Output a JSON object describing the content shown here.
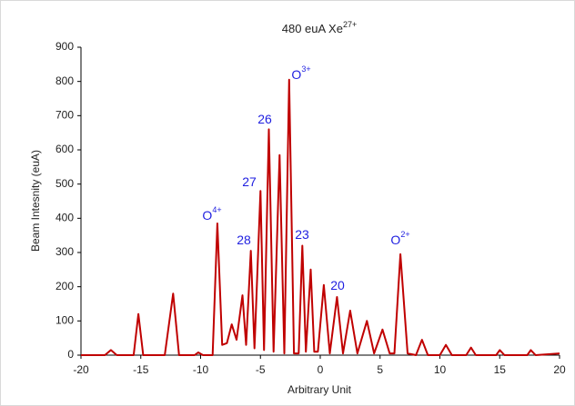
{
  "chart_data": {
    "type": "line",
    "title": "480 euA Xe",
    "title_sup": "27+",
    "x_label": "Arbitrary Unit",
    "y_label": "Beam Intesnity (euA)",
    "x": [
      -20,
      -18,
      -17.5,
      -17,
      -15.6,
      -15.2,
      -14.8,
      -13,
      -12.3,
      -11.8,
      -10.5,
      -10.2,
      -9.8,
      -9,
      -8.6,
      -8.2,
      -7.8,
      -7.4,
      -7.0,
      -6.5,
      -6.2,
      -5.8,
      -5.5,
      -5.0,
      -4.7,
      -4.3,
      -3.9,
      -3.4,
      -3.0,
      -2.6,
      -2.2,
      -1.8,
      -1.5,
      -1.2,
      -0.8,
      -0.5,
      -0.2,
      0.3,
      0.8,
      1.4,
      1.9,
      2.5,
      3.1,
      3.9,
      4.5,
      5.2,
      5.8,
      6.2,
      6.7,
      7.3,
      8.0,
      8.5,
      9.0,
      10.0,
      10.5,
      11.0,
      12.2,
      12.6,
      13.0,
      14.7,
      15.0,
      15.4,
      17.3,
      17.6,
      18.0,
      20
    ],
    "series": [
      {
        "color": "#c00000",
        "values": [
          0,
          0,
          15,
          0,
          0,
          120,
          0,
          0,
          180,
          0,
          0,
          8,
          0,
          0,
          385,
          30,
          35,
          90,
          45,
          175,
          30,
          305,
          20,
          480,
          15,
          660,
          10,
          585,
          5,
          805,
          5,
          5,
          320,
          10,
          250,
          10,
          10,
          205,
          5,
          170,
          5,
          130,
          5,
          100,
          5,
          75,
          5,
          5,
          295,
          5,
          0,
          45,
          0,
          0,
          30,
          0,
          0,
          22,
          0,
          0,
          15,
          0,
          0,
          15,
          0,
          5
        ]
      }
    ],
    "xlim": [
      -20,
      20
    ],
    "xticks": [
      -20,
      -15,
      -10,
      -5,
      0,
      5,
      10,
      15,
      20
    ],
    "ylim": [
      0,
      900
    ],
    "yticks": [
      0,
      100,
      200,
      300,
      400,
      500,
      600,
      700,
      800,
      900
    ],
    "grid": false,
    "annotation_color": "#1f1fe0",
    "annotations": [
      {
        "text": "O",
        "sup": "4+"
      },
      {
        "text": "28"
      },
      {
        "text": "27"
      },
      {
        "text": "26"
      },
      {
        "text": "O",
        "sup": "3+"
      },
      {
        "text": "23"
      },
      {
        "text": "20"
      },
      {
        "text": "O",
        "sup": "2+"
      }
    ]
  }
}
